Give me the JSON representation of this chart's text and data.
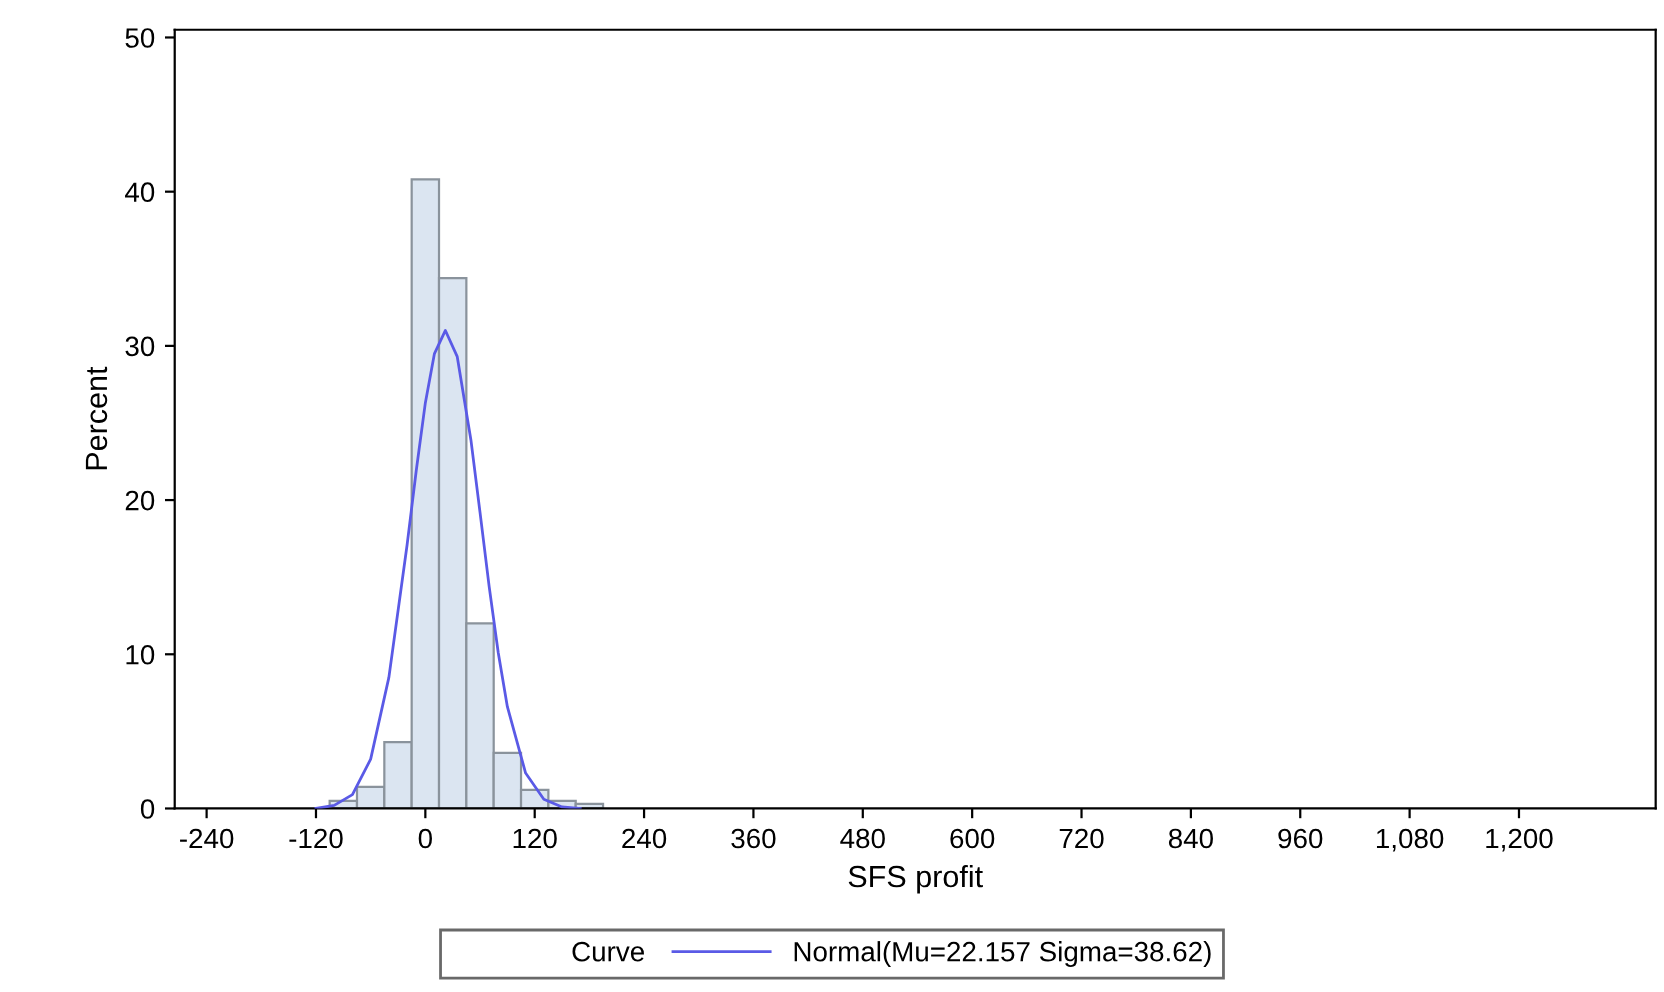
{
  "chart_data": {
    "type": "histogram",
    "xlabel": "SFS profit",
    "ylabel": "Percent",
    "bins": [
      -135,
      -105,
      -75,
      -45,
      -15,
      15,
      45,
      75,
      105,
      135,
      165,
      195,
      225
    ],
    "values": [
      null,
      0.5,
      1.4,
      4.3,
      40.8,
      34.4,
      12.0,
      3.6,
      1.2,
      0.5,
      0.3,
      null
    ],
    "color": "#dbe5f1",
    "series": [
      {
        "type": "line",
        "name": "Normal(Mu=22.157 Sigma=38.62)",
        "color": "#5a5ae6",
        "x": [
          -120,
          -100,
          -80,
          -60,
          -40,
          -20,
          -10,
          0,
          10,
          22,
          35,
          50,
          60,
          70,
          80,
          90,
          110,
          130,
          150,
          170
        ],
        "values": [
          0.0,
          0.2,
          0.9,
          3.2,
          8.5,
          17.1,
          21.9,
          26.3,
          29.5,
          31.0,
          29.3,
          23.9,
          19.2,
          14.4,
          10.1,
          6.6,
          2.3,
          0.6,
          0.1,
          0.0
        ]
      }
    ],
    "legend_title": "Curve",
    "legend": "bottom",
    "xlim": [
      -275,
      1350
    ],
    "ylim": [
      0,
      50.5
    ],
    "xticks": [
      -240,
      -120,
      0,
      120,
      240,
      360,
      480,
      600,
      720,
      840,
      960,
      {
        "value": 1080,
        "label": "1,080"
      },
      {
        "value": 1200,
        "label": "1,200"
      }
    ],
    "yticks": [
      0,
      10,
      20,
      30,
      40,
      50
    ],
    "grid": false
  }
}
